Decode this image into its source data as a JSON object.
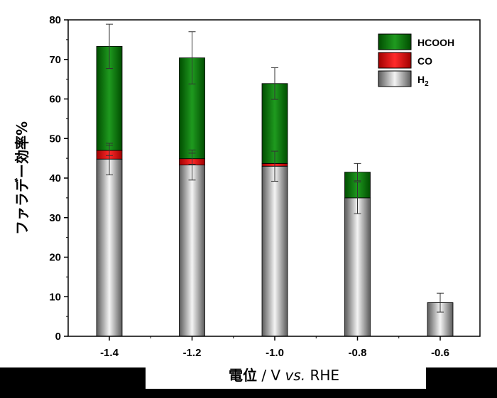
{
  "chart_data": {
    "type": "bar",
    "stacked": true,
    "categories": [
      "-1.4",
      "-1.2",
      "-1.0",
      "-0.8",
      "-0.6"
    ],
    "series": [
      {
        "name": "H2",
        "legend_main": "H",
        "legend_sub": "2",
        "values": [
          44.8,
          43.3,
          43.0,
          35.0,
          8.5
        ],
        "errors": [
          4.0,
          3.8,
          3.8,
          4.0,
          2.4
        ],
        "color": "#b0b0b0"
      },
      {
        "name": "CO",
        "legend_main": "CO",
        "values": [
          2.2,
          1.6,
          0.7,
          0.0,
          0.0
        ],
        "errors": [
          1.3,
          1.4,
          0.0,
          0.0,
          0.0
        ],
        "color": "#ff0000"
      },
      {
        "name": "HCOOH",
        "legend_main": "HCOOH",
        "values": [
          26.3,
          25.5,
          20.2,
          6.5,
          0.0
        ],
        "errors": [
          5.6,
          6.6,
          4.0,
          2.2,
          0.0
        ],
        "color": "#008000"
      }
    ],
    "ylabel": "ファラデー効率%",
    "xlabel_main": "電位",
    "xlabel_sep": " / V ",
    "xlabel_italic": "vs.",
    "xlabel_end": " RHE",
    "ylim": [
      0,
      80
    ],
    "yticks": [
      "0",
      "10",
      "20",
      "30",
      "40",
      "50",
      "60",
      "70",
      "80"
    ],
    "grid": false,
    "legend_position": "top-right"
  }
}
